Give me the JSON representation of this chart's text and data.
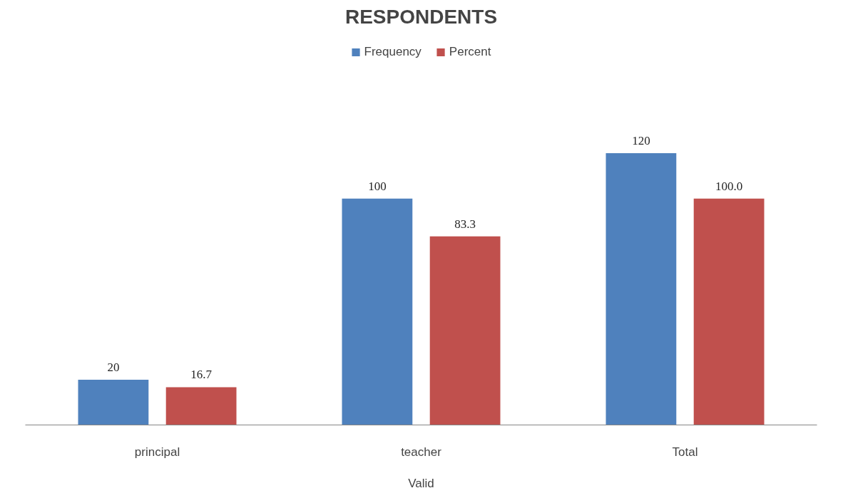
{
  "chart_data": {
    "type": "bar",
    "title": "RESPONDENTS",
    "xlabel": "Valid",
    "categories": [
      "principal",
      "teacher",
      "Total"
    ],
    "series": [
      {
        "name": "Frequency",
        "color": "#4f81bd",
        "values": [
          20,
          100,
          120
        ],
        "value_labels": [
          "20",
          "100",
          "120"
        ]
      },
      {
        "name": "Percent",
        "color": "#c0504d",
        "values": [
          16.7,
          83.3,
          100.0
        ],
        "value_labels": [
          "16.7",
          "83.3",
          "100.0"
        ]
      }
    ],
    "legend": "top",
    "grid": false
  }
}
